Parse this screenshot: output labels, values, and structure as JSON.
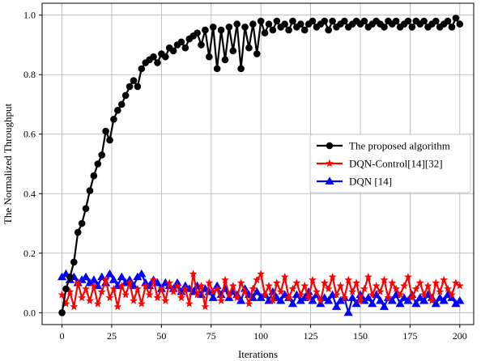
{
  "chart_data": {
    "type": "line",
    "title": "",
    "xlabel": "Iterations",
    "ylabel": "The Normalized Throughput",
    "xlim": [
      -10,
      207
    ],
    "ylim": [
      -0.04,
      1.04
    ],
    "xticks": [
      0,
      25,
      50,
      75,
      100,
      125,
      150,
      175,
      200
    ],
    "yticks": [
      0.0,
      0.2,
      0.4,
      0.6,
      0.8,
      1.0
    ],
    "xtick_labels": [
      "0",
      "25",
      "50",
      "75",
      "100",
      "125",
      "150",
      "175",
      "200"
    ],
    "ytick_labels": [
      "0.0",
      "0.2",
      "0.4",
      "0.6",
      "0.8",
      "1.0"
    ],
    "grid": true,
    "legend_position": "center-right",
    "series": [
      {
        "name": "The proposed algorithm",
        "color": "#000000",
        "marker": "circle",
        "x": [
          0,
          2,
          4,
          6,
          8,
          10,
          12,
          14,
          16,
          18,
          20,
          22,
          24,
          26,
          28,
          30,
          32,
          34,
          36,
          38,
          40,
          42,
          44,
          46,
          48,
          50,
          52,
          54,
          56,
          58,
          60,
          62,
          64,
          66,
          68,
          70,
          72,
          74,
          76,
          78,
          80,
          82,
          84,
          86,
          88,
          90,
          92,
          94,
          96,
          98,
          100,
          102,
          104,
          106,
          108,
          110,
          112,
          114,
          116,
          118,
          120,
          122,
          124,
          126,
          128,
          130,
          132,
          134,
          136,
          138,
          140,
          142,
          144,
          146,
          148,
          150,
          152,
          154,
          156,
          158,
          160,
          162,
          164,
          166,
          168,
          170,
          172,
          174,
          176,
          178,
          180,
          182,
          184,
          186,
          188,
          190,
          192,
          194,
          196,
          198,
          200
        ],
        "y": [
          0.0,
          0.08,
          0.12,
          0.17,
          0.27,
          0.3,
          0.35,
          0.41,
          0.46,
          0.5,
          0.53,
          0.61,
          0.58,
          0.65,
          0.68,
          0.7,
          0.73,
          0.76,
          0.78,
          0.76,
          0.82,
          0.84,
          0.85,
          0.86,
          0.84,
          0.87,
          0.86,
          0.89,
          0.88,
          0.9,
          0.91,
          0.89,
          0.92,
          0.93,
          0.94,
          0.9,
          0.95,
          0.86,
          0.96,
          0.82,
          0.95,
          0.85,
          0.96,
          0.88,
          0.97,
          0.82,
          0.96,
          0.89,
          0.97,
          0.87,
          0.98,
          0.94,
          0.97,
          0.95,
          0.98,
          0.96,
          0.97,
          0.95,
          0.98,
          0.96,
          0.97,
          0.95,
          0.97,
          0.98,
          0.96,
          0.97,
          0.98,
          0.95,
          0.98,
          0.96,
          0.97,
          0.98,
          0.96,
          0.97,
          0.98,
          0.97,
          0.98,
          0.96,
          0.97,
          0.98,
          0.97,
          0.96,
          0.98,
          0.97,
          0.98,
          0.96,
          0.97,
          0.98,
          0.96,
          0.98,
          0.97,
          0.98,
          0.96,
          0.97,
          0.98,
          0.96,
          0.97,
          0.98,
          0.96,
          0.99,
          0.97
        ]
      },
      {
        "name": "DQN-Control[14][32]",
        "color": "#ff0000",
        "marker": "star",
        "x": [
          0,
          2,
          4,
          6,
          8,
          10,
          12,
          14,
          16,
          18,
          20,
          22,
          24,
          26,
          28,
          30,
          32,
          34,
          36,
          38,
          40,
          42,
          44,
          46,
          48,
          50,
          52,
          54,
          56,
          58,
          60,
          62,
          64,
          66,
          68,
          70,
          72,
          74,
          76,
          78,
          80,
          82,
          84,
          86,
          88,
          90,
          92,
          94,
          96,
          98,
          100,
          102,
          104,
          106,
          108,
          110,
          112,
          114,
          116,
          118,
          120,
          122,
          124,
          126,
          128,
          130,
          132,
          134,
          136,
          138,
          140,
          142,
          144,
          146,
          148,
          150,
          152,
          154,
          156,
          158,
          160,
          162,
          164,
          166,
          168,
          170,
          172,
          174,
          176,
          178,
          180,
          182,
          184,
          186,
          188,
          190,
          192,
          194,
          196,
          198,
          200
        ],
        "y": [
          0.06,
          0.03,
          0.07,
          0.02,
          0.1,
          0.05,
          0.08,
          0.04,
          0.09,
          0.03,
          0.07,
          0.11,
          0.05,
          0.08,
          0.02,
          0.09,
          0.06,
          0.1,
          0.04,
          0.08,
          0.03,
          0.09,
          0.06,
          0.11,
          0.05,
          0.08,
          0.04,
          0.1,
          0.07,
          0.09,
          0.05,
          0.08,
          0.03,
          0.13,
          0.06,
          0.09,
          0.02,
          0.1,
          0.07,
          0.08,
          0.04,
          0.11,
          0.06,
          0.09,
          0.05,
          0.1,
          0.07,
          0.03,
          0.08,
          0.11,
          0.13,
          0.06,
          0.09,
          0.04,
          0.1,
          0.07,
          0.12,
          0.05,
          0.08,
          0.1,
          0.06,
          0.09,
          0.05,
          0.11,
          0.07,
          0.04,
          0.1,
          0.08,
          0.12,
          0.06,
          0.09,
          0.05,
          0.11,
          0.07,
          0.1,
          0.04,
          0.08,
          0.12,
          0.06,
          0.09,
          0.07,
          0.11,
          0.05,
          0.1,
          0.08,
          0.06,
          0.09,
          0.12,
          0.05,
          0.08,
          0.1,
          0.06,
          0.09,
          0.04,
          0.1,
          0.07,
          0.11,
          0.08,
          0.06,
          0.1,
          0.09
        ]
      },
      {
        "name": "DQN [14]",
        "color": "#0000ff",
        "marker": "triangle",
        "x": [
          0,
          2,
          4,
          6,
          8,
          10,
          12,
          14,
          16,
          18,
          20,
          22,
          24,
          26,
          28,
          30,
          32,
          34,
          36,
          38,
          40,
          42,
          44,
          46,
          48,
          50,
          52,
          54,
          56,
          58,
          60,
          62,
          64,
          66,
          68,
          70,
          72,
          74,
          76,
          78,
          80,
          82,
          84,
          86,
          88,
          90,
          92,
          94,
          96,
          98,
          100,
          102,
          104,
          106,
          108,
          110,
          112,
          114,
          116,
          118,
          120,
          122,
          124,
          126,
          128,
          130,
          132,
          134,
          136,
          138,
          140,
          142,
          144,
          146,
          148,
          150,
          152,
          154,
          156,
          158,
          160,
          162,
          164,
          166,
          168,
          170,
          172,
          174,
          176,
          178,
          180,
          182,
          184,
          186,
          188,
          190,
          192,
          194,
          196,
          198,
          200
        ],
        "y": [
          0.12,
          0.13,
          0.11,
          0.12,
          0.1,
          0.11,
          0.12,
          0.1,
          0.11,
          0.09,
          0.12,
          0.1,
          0.13,
          0.11,
          0.09,
          0.12,
          0.1,
          0.11,
          0.09,
          0.12,
          0.13,
          0.1,
          0.09,
          0.11,
          0.1,
          0.08,
          0.1,
          0.09,
          0.08,
          0.1,
          0.07,
          0.09,
          0.08,
          0.07,
          0.09,
          0.06,
          0.08,
          0.07,
          0.05,
          0.09,
          0.06,
          0.08,
          0.05,
          0.07,
          0.06,
          0.04,
          0.08,
          0.06,
          0.05,
          0.07,
          0.05,
          0.06,
          0.04,
          0.07,
          0.05,
          0.04,
          0.06,
          0.05,
          0.03,
          0.06,
          0.04,
          0.05,
          0.07,
          0.04,
          0.06,
          0.03,
          0.05,
          0.04,
          0.06,
          0.02,
          0.04,
          0.05,
          0.0,
          0.05,
          0.03,
          0.06,
          0.04,
          0.05,
          0.03,
          0.06,
          0.04,
          0.02,
          0.05,
          0.04,
          0.06,
          0.03,
          0.05,
          0.04,
          0.06,
          0.03,
          0.05,
          0.04,
          0.06,
          0.05,
          0.03,
          0.05,
          0.04,
          0.06,
          0.05,
          0.03,
          0.04
        ]
      }
    ]
  }
}
